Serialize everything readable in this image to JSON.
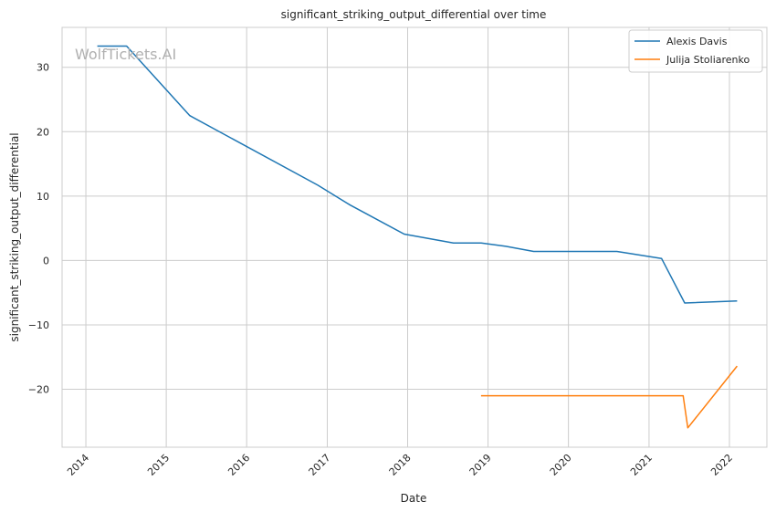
{
  "watermark": "WolfTickets.AI",
  "chart_data": {
    "type": "line",
    "title": "significant_striking_output_differential over time",
    "xlabel": "Date",
    "ylabel": "significant_striking_output_differential",
    "x_type": "date",
    "xlim": [
      "2013-09-15",
      "2022-06-20"
    ],
    "ylim": [
      -29.0,
      36.2
    ],
    "x_ticks": [
      {
        "label": "2014",
        "date": "2014-01-01"
      },
      {
        "label": "2015",
        "date": "2015-01-01"
      },
      {
        "label": "2016",
        "date": "2016-01-01"
      },
      {
        "label": "2017",
        "date": "2017-01-01"
      },
      {
        "label": "2018",
        "date": "2018-01-01"
      },
      {
        "label": "2019",
        "date": "2019-01-01"
      },
      {
        "label": "2020",
        "date": "2020-01-01"
      },
      {
        "label": "2021",
        "date": "2021-01-01"
      },
      {
        "label": "2022",
        "date": "2022-01-01"
      }
    ],
    "y_ticks": [
      {
        "label": "30",
        "value": 30
      },
      {
        "label": "20",
        "value": 20
      },
      {
        "label": "10",
        "value": 10
      },
      {
        "label": "0",
        "value": 0
      },
      {
        "label": "−10",
        "value": -10
      },
      {
        "label": "−20",
        "value": -20
      }
    ],
    "grid": true,
    "legend": "top-right",
    "series": [
      {
        "name": "Alexis Davis",
        "color": "#1f77b4",
        "points": [
          {
            "x": "2014-02-22",
            "y": 33.3
          },
          {
            "x": "2014-07-05",
            "y": 33.3
          },
          {
            "x": "2015-04-18",
            "y": 22.5
          },
          {
            "x": "2016-11-19",
            "y": 11.7
          },
          {
            "x": "2017-04-15",
            "y": 8.6
          },
          {
            "x": "2017-12-16",
            "y": 4.1
          },
          {
            "x": "2018-07-28",
            "y": 2.7
          },
          {
            "x": "2018-12-01",
            "y": 2.7
          },
          {
            "x": "2019-03-23",
            "y": 2.2
          },
          {
            "x": "2019-07-27",
            "y": 1.4
          },
          {
            "x": "2020-08-08",
            "y": 1.4
          },
          {
            "x": "2021-02-27",
            "y": 0.3
          },
          {
            "x": "2021-06-12",
            "y": -6.6
          },
          {
            "x": "2022-02-05",
            "y": -6.3
          }
        ]
      },
      {
        "name": "Julija Stoliarenko",
        "color": "#ff7f0e",
        "points": [
          {
            "x": "2018-11-30",
            "y": -21.0
          },
          {
            "x": "2021-06-05",
            "y": -21.0
          },
          {
            "x": "2021-06-26",
            "y": -26.0
          },
          {
            "x": "2022-02-05",
            "y": -16.4
          }
        ]
      }
    ]
  }
}
